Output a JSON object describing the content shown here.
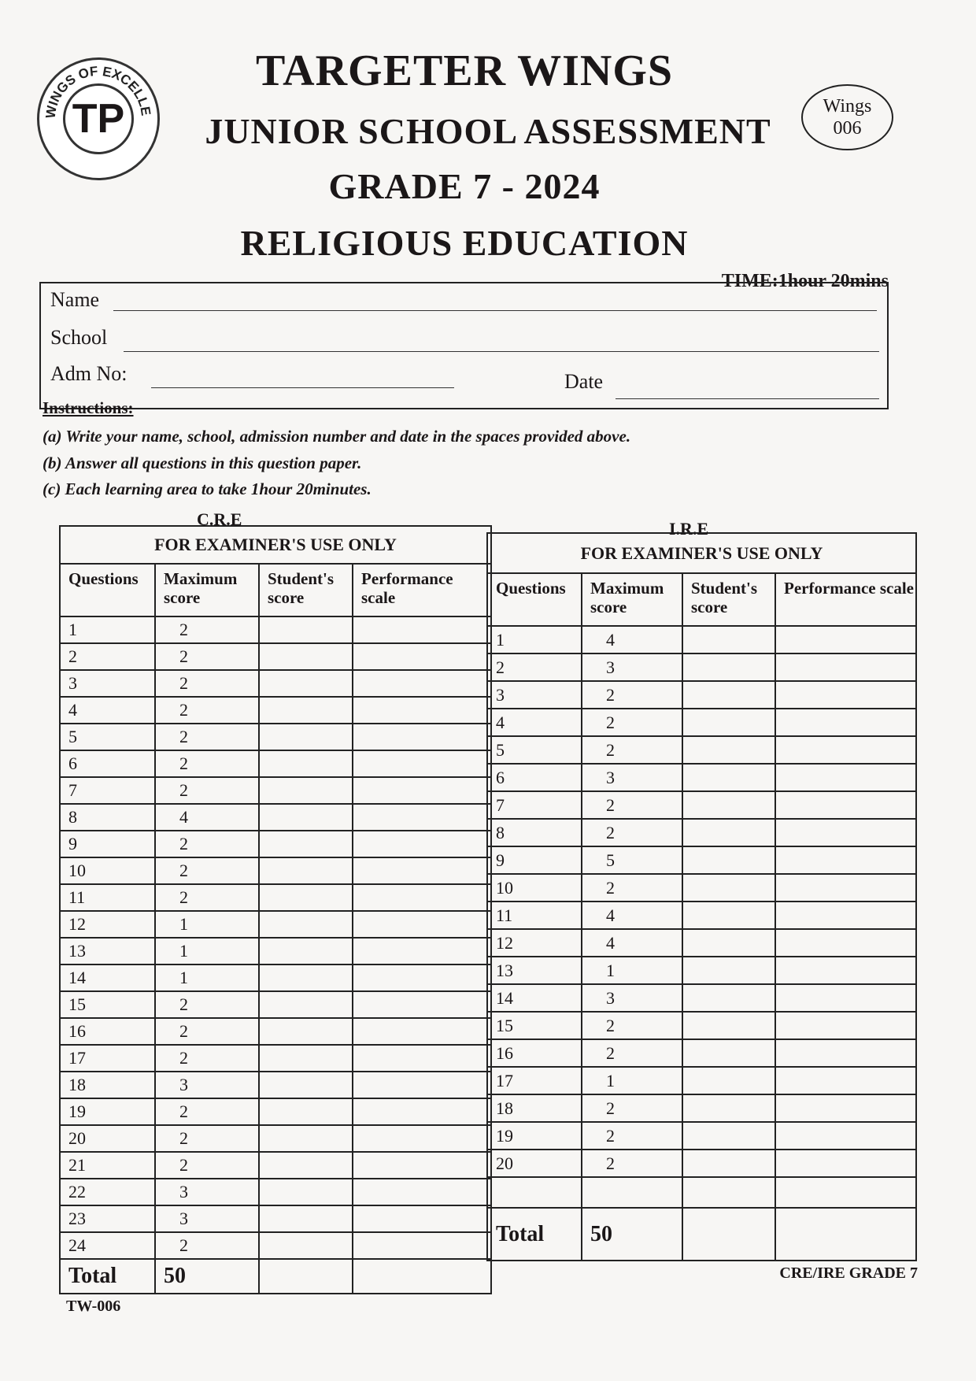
{
  "header": {
    "school": "TARGETER WINGS",
    "assessment": "JUNIOR SCHOOL ASSESSMENT",
    "grade_year": "GRADE 7 - 2024",
    "subject": "RELIGIOUS EDUCATION",
    "logo_text": "WINGS OF EXCELLENCE",
    "badge_line1": "Wings",
    "badge_line2": "006",
    "time": "TIME:1hour 20mins"
  },
  "student_fields": {
    "name": "Name",
    "school": "School",
    "adm": "Adm No:",
    "date": "Date"
  },
  "instructions": {
    "heading": "Instructions:",
    "items": [
      "(a) Write your name, school, admission number and date in the spaces provided above.",
      "(b) Answer all questions in this question paper.",
      "(c) Each learning area to take 1hour 20minutes."
    ]
  },
  "cre": {
    "label": "C.R.E",
    "title": "FOR EXAMINER'S USE ONLY",
    "columns": [
      "Questions",
      "Maximum score",
      "Student's score",
      "Performance scale"
    ],
    "rows": [
      [
        "1",
        "2"
      ],
      [
        "2",
        "2"
      ],
      [
        "3",
        "2"
      ],
      [
        "4",
        "2"
      ],
      [
        "5",
        "2"
      ],
      [
        "6",
        "2"
      ],
      [
        "7",
        "2"
      ],
      [
        "8",
        "4"
      ],
      [
        "9",
        "2"
      ],
      [
        "10",
        "2"
      ],
      [
        "11",
        "2"
      ],
      [
        "12",
        "1"
      ],
      [
        "13",
        "1"
      ],
      [
        "14",
        "1"
      ],
      [
        "15",
        "2"
      ],
      [
        "16",
        "2"
      ],
      [
        "17",
        "2"
      ],
      [
        "18",
        "3"
      ],
      [
        "19",
        "2"
      ],
      [
        "20",
        "2"
      ],
      [
        "21",
        "2"
      ],
      [
        "22",
        "3"
      ],
      [
        "23",
        "3"
      ],
      [
        "24",
        "2"
      ]
    ],
    "total_label": "Total",
    "total_value": "50"
  },
  "ire": {
    "label": "I.R.E",
    "title": "FOR EXAMINER'S USE ONLY",
    "columns": [
      "Questions",
      "Maximum score",
      "Student's score",
      "Performance scale"
    ],
    "rows": [
      [
        "1",
        "4"
      ],
      [
        "2",
        "3"
      ],
      [
        "3",
        "2"
      ],
      [
        "4",
        "2"
      ],
      [
        "5",
        "2"
      ],
      [
        "6",
        "3"
      ],
      [
        "7",
        "2"
      ],
      [
        "8",
        "2"
      ],
      [
        "9",
        "5"
      ],
      [
        "10",
        "2"
      ],
      [
        "11",
        "4"
      ],
      [
        "12",
        "4"
      ],
      [
        "13",
        "1"
      ],
      [
        "14",
        "3"
      ],
      [
        "15",
        "2"
      ],
      [
        "16",
        "2"
      ],
      [
        "17",
        "1"
      ],
      [
        "18",
        "2"
      ],
      [
        "19",
        "2"
      ],
      [
        "20",
        "2"
      ]
    ],
    "total_label": "Total",
    "total_value": "50"
  },
  "footer": {
    "left": "TW-006",
    "right": "CRE/IRE GRADE 7"
  }
}
